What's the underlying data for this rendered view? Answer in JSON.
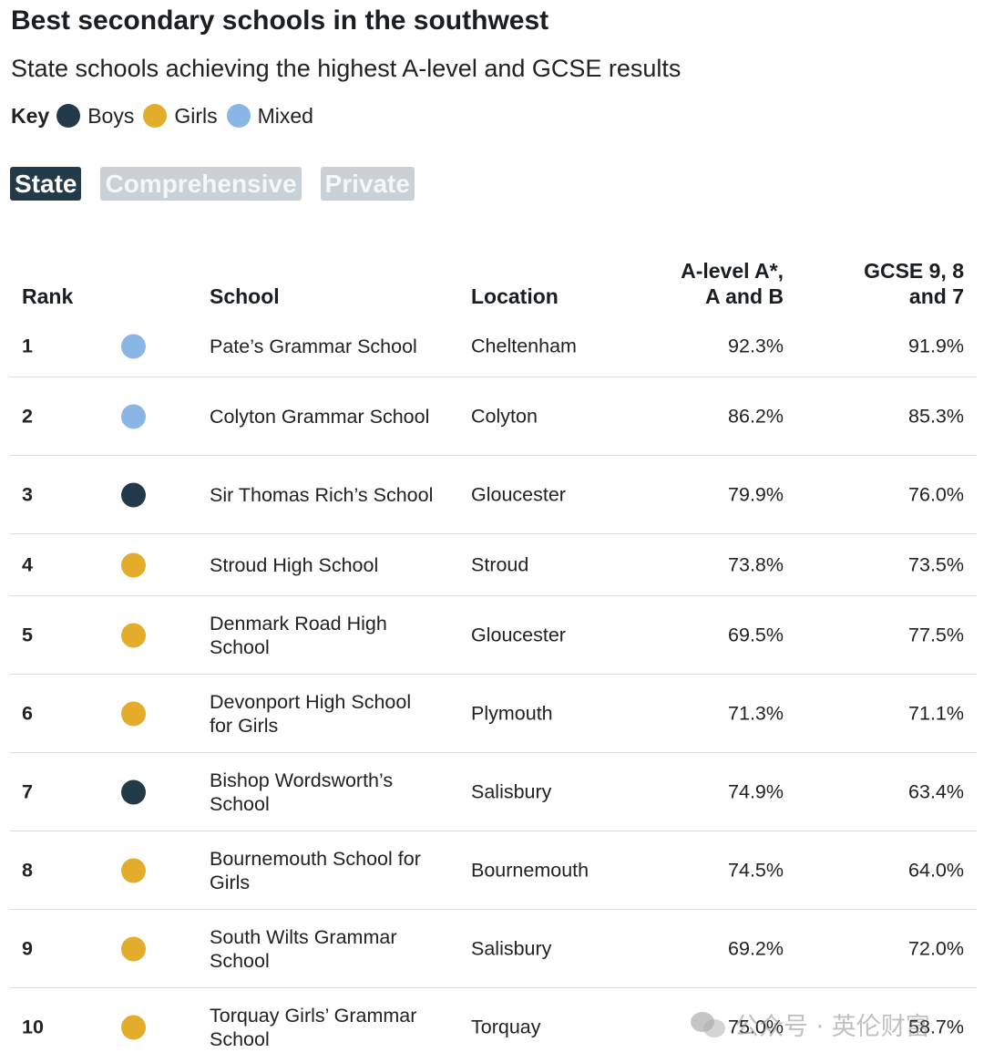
{
  "title": "Best secondary schools in the southwest",
  "subtitle": "State schools achieving the highest A-level and GCSE results",
  "key": {
    "label": "Key",
    "items": [
      {
        "label": "Boys",
        "color": "#233a4b"
      },
      {
        "label": "Girls",
        "color": "#e3ac2b"
      },
      {
        "label": "Mixed",
        "color": "#8ab6e6"
      }
    ]
  },
  "tabs": [
    {
      "label": "State",
      "active": true
    },
    {
      "label": "Comprehensive",
      "active": false
    },
    {
      "label": "Private",
      "active": false
    }
  ],
  "table": {
    "headers": {
      "rank": "Rank",
      "school": "School",
      "location": "Location",
      "alevel": "A-level A*,\nA and B",
      "gcse": "GCSE 9, 8\nand 7"
    },
    "rows": [
      {
        "rank": "1",
        "type": "Mixed",
        "color": "#8ab6e6",
        "school": "Pate’s Grammar School",
        "location": "Cheltenham",
        "alevel": "92.3%",
        "gcse": "91.9%"
      },
      {
        "rank": "2",
        "type": "Mixed",
        "color": "#8ab6e6",
        "school": "Colyton Grammar School",
        "location": "Colyton",
        "alevel": "86.2%",
        "gcse": "85.3%"
      },
      {
        "rank": "3",
        "type": "Boys",
        "color": "#233a4b",
        "school": "Sir Thomas Rich’s School",
        "location": "Gloucester",
        "alevel": "79.9%",
        "gcse": "76.0%"
      },
      {
        "rank": "4",
        "type": "Girls",
        "color": "#e3ac2b",
        "school": "Stroud High School",
        "location": "Stroud",
        "alevel": "73.8%",
        "gcse": "73.5%"
      },
      {
        "rank": "5",
        "type": "Girls",
        "color": "#e3ac2b",
        "school": "Denmark Road High School",
        "location": "Gloucester",
        "alevel": "69.5%",
        "gcse": "77.5%"
      },
      {
        "rank": "6",
        "type": "Girls",
        "color": "#e3ac2b",
        "school": "Devonport High School for Girls",
        "location": "Plymouth",
        "alevel": "71.3%",
        "gcse": "71.1%"
      },
      {
        "rank": "7",
        "type": "Boys",
        "color": "#233a4b",
        "school": "Bishop Wordsworth’s School",
        "location": "Salisbury",
        "alevel": "74.9%",
        "gcse": "63.4%"
      },
      {
        "rank": "8",
        "type": "Girls",
        "color": "#e3ac2b",
        "school": "Bournemouth School for Girls",
        "location": "Bournemouth",
        "alevel": "74.5%",
        "gcse": "64.0%"
      },
      {
        "rank": "9",
        "type": "Girls",
        "color": "#e3ac2b",
        "school": "South Wilts Grammar School",
        "location": "Salisbury",
        "alevel": "69.2%",
        "gcse": "72.0%"
      },
      {
        "rank": "10",
        "type": "Girls",
        "color": "#e3ac2b",
        "school": "Torquay Girls’ Grammar School",
        "location": "Torquay",
        "alevel": "75.0%",
        "gcse": "58.7%"
      }
    ]
  },
  "watermark": {
    "text": "公众号 · 英伦财富",
    "icon": "wechat-icon"
  }
}
